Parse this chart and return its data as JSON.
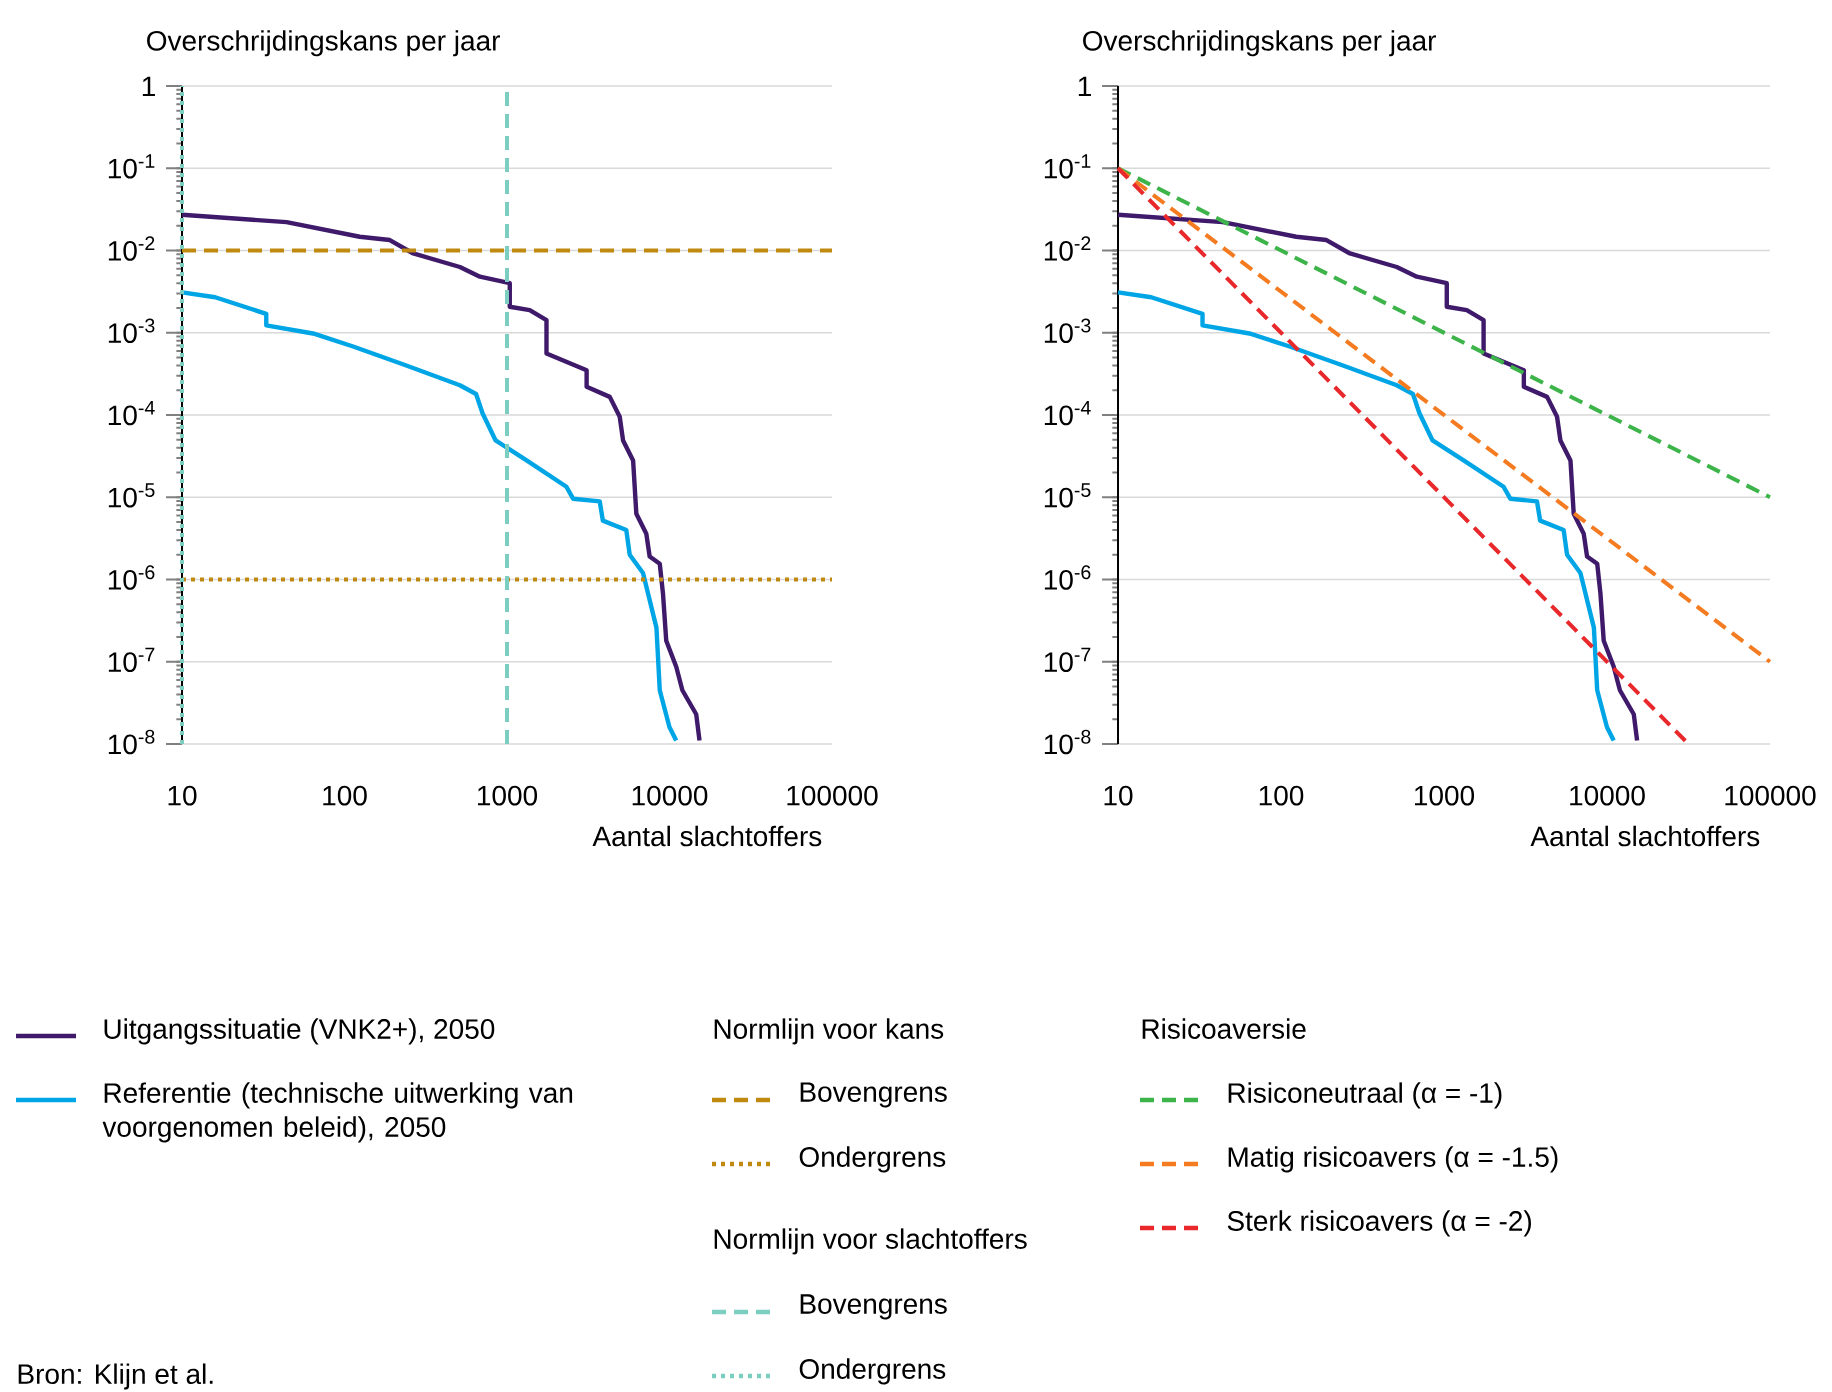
{
  "chart_data": [
    {
      "type": "line",
      "ylabel": "Overschrijdingskans per jaar",
      "xlabel": "Aantal slachtoffers",
      "log": "xy",
      "grid": "y",
      "legend": "bottom",
      "xlim": [
        10,
        100000
      ],
      "ylim": [
        1e-08,
        1
      ],
      "xticks": [
        10,
        100,
        1000,
        10000,
        100000
      ],
      "yticks": [
        {
          "value": 1e-08,
          "label": "10$^{-8}$"
        },
        {
          "value": 1e-07,
          "label": "10$^{-7}$"
        },
        {
          "value": 1e-06,
          "label": "10$^{-6}$"
        },
        {
          "value": 1e-05,
          "label": "10$^{-5}$"
        },
        {
          "value": 0.0001,
          "label": "10$^{-4}$"
        },
        {
          "value": 0.001,
          "label": "10$^{-3}$"
        },
        {
          "value": 0.01,
          "label": "10$^{-2}$"
        },
        {
          "value": 0.1,
          "label": "10$^{-1}$"
        },
        1
      ],
      "annotations": [
        "Normlijn voor kans",
        "Normlijn voor slachtoffers",
        "Bron: Klijn et al."
      ],
      "series": [
        {
          "name": "Uitgangssituatie (VNK2+), 2050",
          "color": "#3f1a6b",
          "line_style": "solid",
          "x": [
            10,
            44,
            124,
            190,
            265,
            513,
            681,
            1040,
            1040,
            1380,
            1750,
            1750,
            3090,
            3090,
            4290,
            4940,
            5180,
            5970,
            6250,
            7200,
            7550,
            8710,
            9120,
            9550,
            11000,
            12000,
            14600,
            15300
          ],
          "values": [
            0.0272,
            0.0221,
            0.0147,
            0.0134,
            0.0092,
            0.0063,
            0.0048,
            0.004,
            0.00207,
            0.00188,
            0.00142,
            0.00056,
            0.00035,
            0.00022,
            0.000166,
            9.5e-05,
            4.9e-05,
            2.8e-05,
            6.3e-06,
            3.6e-06,
            1.9e-06,
            1.55e-06,
            6.7e-07,
            1.8e-07,
            8.7e-08,
            4.5e-08,
            2.3e-08,
            1.1e-08
          ]
        },
        {
          "name": "Referentie (technische uitwerking van voorgenomen beleid), 2050",
          "color": "#00a5e6",
          "line_style": "solid",
          "x": [
            10,
            16,
            33,
            33,
            64,
            113,
            240,
            513,
            645,
            707,
            851,
            1320,
            2320,
            2550,
            3720,
            3890,
            5420,
            5690,
            6870,
            8310,
            8710,
            10000,
            11000
          ],
          "values": [
            0.0031,
            0.0027,
            0.0017,
            0.00123,
            0.00098,
            0.00068,
            0.0004,
            0.00023,
            0.00018,
            0.000105,
            4.9e-05,
            2.8e-05,
            1.34e-05,
            9.6e-06,
            8.9e-06,
            5.2e-06,
            4e-06,
            2e-06,
            1.2e-06,
            2.6e-07,
            4.5e-08,
            1.6e-08,
            1.1e-08
          ]
        },
        {
          "name": "Bovengrens",
          "color": "#c08a10",
          "line_style": "dashed",
          "x": [
            10,
            100000
          ],
          "values": [
            0.01,
            0.01
          ]
        },
        {
          "name": "Ondergrens",
          "color": "#c08a10",
          "line_style": "dotted",
          "x": [
            10,
            100000
          ],
          "values": [
            1e-06,
            1e-06
          ]
        },
        {
          "name": "Bovengrens",
          "color": "#7ccfc0",
          "line_style": "dashed",
          "x": [
            1000,
            1000
          ],
          "values": [
            1e-08,
            1
          ]
        },
        {
          "name": "Ondergrens",
          "color": "#7ccfc0",
          "line_style": "dotted",
          "x": [
            10,
            10
          ],
          "values": [
            1e-08,
            1
          ]
        }
      ]
    },
    {
      "type": "line",
      "ylabel": "Overschrijdingskans per jaar",
      "xlabel": "Aantal slachtoffers",
      "log": "xy",
      "grid": "y",
      "legend": "bottom",
      "legend_title": "Risicoaversie",
      "xlim": [
        10,
        100000
      ],
      "ylim": [
        1e-08,
        1
      ],
      "xticks": [
        10,
        100,
        1000,
        10000,
        100000
      ],
      "yticks": [
        {
          "value": 1e-08,
          "label": "10$^{-8}$"
        },
        {
          "value": 1e-07,
          "label": "10$^{-7}$"
        },
        {
          "value": 1e-06,
          "label": "10$^{-6}$"
        },
        {
          "value": 1e-05,
          "label": "10$^{-5}$"
        },
        {
          "value": 0.0001,
          "label": "10$^{-4}$"
        },
        {
          "value": 0.001,
          "label": "10$^{-3}$"
        },
        {
          "value": 0.01,
          "label": "10$^{-2}$"
        },
        {
          "value": 0.1,
          "label": "10$^{-1}$"
        },
        1
      ],
      "series": [
        {
          "color": "#3f1a6b",
          "line_style": "solid",
          "x": [
            10,
            44,
            124,
            190,
            265,
            513,
            681,
            1040,
            1040,
            1380,
            1750,
            1750,
            3090,
            3090,
            4290,
            4940,
            5180,
            5970,
            6250,
            7200,
            7550,
            8710,
            9120,
            9550,
            11000,
            12000,
            14600,
            15300
          ],
          "values": [
            0.0272,
            0.0221,
            0.0147,
            0.0134,
            0.0092,
            0.0063,
            0.0048,
            0.004,
            0.00207,
            0.00188,
            0.00142,
            0.00056,
            0.00035,
            0.00022,
            0.000166,
            9.5e-05,
            4.9e-05,
            2.8e-05,
            6.3e-06,
            3.6e-06,
            1.9e-06,
            1.55e-06,
            6.7e-07,
            1.8e-07,
            8.7e-08,
            4.5e-08,
            2.3e-08,
            1.1e-08
          ]
        },
        {
          "color": "#00a5e6",
          "line_style": "solid",
          "x": [
            10,
            16,
            33,
            33,
            64,
            113,
            240,
            513,
            645,
            707,
            851,
            1320,
            2320,
            2550,
            3720,
            3890,
            5420,
            5690,
            6870,
            8310,
            8710,
            10000,
            11000
          ],
          "values": [
            0.0031,
            0.0027,
            0.0017,
            0.00123,
            0.00098,
            0.00068,
            0.0004,
            0.00023,
            0.00018,
            0.000105,
            4.9e-05,
            2.8e-05,
            1.34e-05,
            9.6e-06,
            8.9e-06,
            5.2e-06,
            4e-06,
            2e-06,
            1.2e-06,
            2.6e-07,
            4.5e-08,
            1.6e-08,
            1.1e-08
          ]
        },
        {
          "name": "Risiconeutraal (α = -1)",
          "color": "#3cb44a",
          "line_style": "dashed",
          "x": [
            10,
            100000
          ],
          "values": [
            0.1,
            1e-05
          ]
        },
        {
          "name": "Matig risicoavers (α = -1.5)",
          "color": "#f47b20",
          "line_style": "dashed",
          "x": [
            10,
            100000
          ],
          "values": [
            0.1,
            1e-07
          ]
        },
        {
          "name": "Sterk risicoavers (α = -2)",
          "color": "#e8282a",
          "line_style": "dashed",
          "x": [
            10,
            31623
          ],
          "values": [
            0.1,
            1e-08
          ]
        }
      ]
    }
  ]
}
